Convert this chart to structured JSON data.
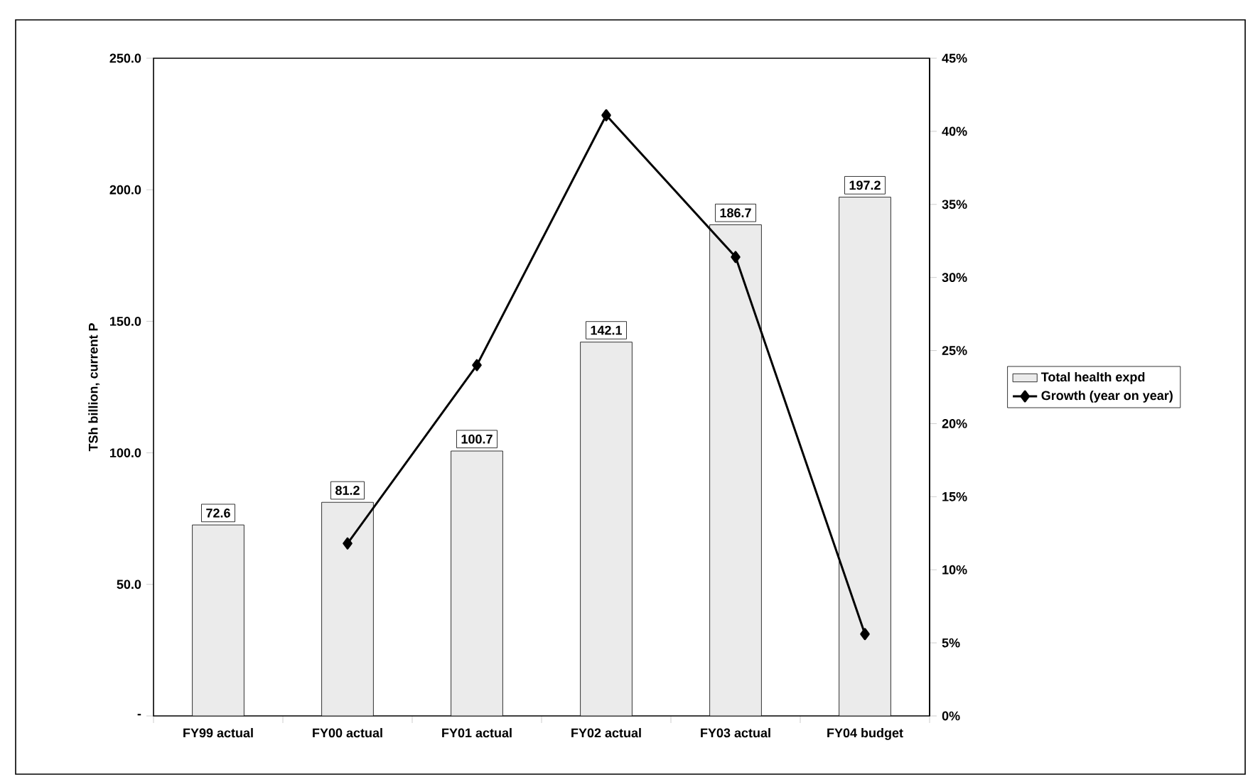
{
  "chart_data": {
    "type": "bar",
    "categories": [
      "FY99 actual",
      "FY00 actual",
      "FY01 actual",
      "FY02 actual",
      "FY03 actual",
      "FY04 budget"
    ],
    "ylabel": "TSh billion, current P",
    "series": [
      {
        "name": "Total health expd",
        "color": "#ebebeb",
        "values": [
          72.6,
          81.2,
          100.7,
          142.1,
          186.7,
          197.2
        ],
        "value_labels": [
          "72.6",
          "81.2",
          "100.7",
          "142.1",
          "186.7",
          "197.2"
        ]
      },
      {
        "name": "Growth (year on year)",
        "type": "line",
        "axis": "y2",
        "color": "#000000",
        "marker": "diamond",
        "values": [
          null,
          11.8,
          24.0,
          41.1,
          31.4,
          5.6
        ]
      }
    ],
    "ylim": [
      0,
      250
    ],
    "yticks": [
      {
        "value": 0,
        "label": "-"
      },
      {
        "value": 50,
        "label": "50.0"
      },
      {
        "value": 100,
        "label": "100.0"
      },
      {
        "value": 150,
        "label": "150.0"
      },
      {
        "value": 200,
        "label": "200.0"
      },
      {
        "value": 250,
        "label": "250.0"
      }
    ],
    "y2lim": [
      0,
      45
    ],
    "y2ticks": [
      {
        "value": 0,
        "label": "0%"
      },
      {
        "value": 5,
        "label": "5%"
      },
      {
        "value": 10,
        "label": "10%"
      },
      {
        "value": 15,
        "label": "15%"
      },
      {
        "value": 20,
        "label": "20%"
      },
      {
        "value": 25,
        "label": "25%"
      },
      {
        "value": 30,
        "label": "30%"
      },
      {
        "value": 35,
        "label": "35%"
      },
      {
        "value": 40,
        "label": "40%"
      },
      {
        "value": 45,
        "label": "45%"
      }
    ],
    "grid": false,
    "legend": "right"
  }
}
